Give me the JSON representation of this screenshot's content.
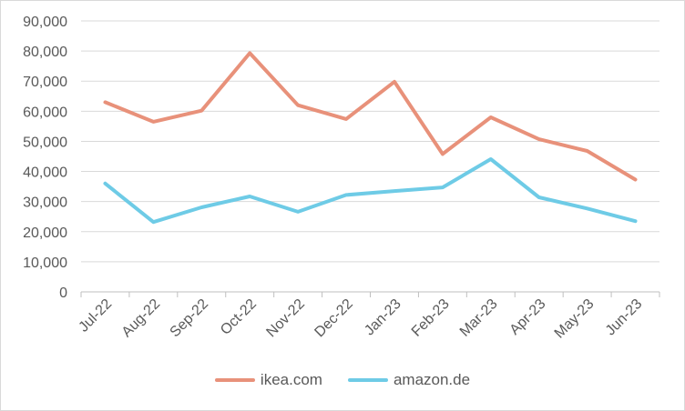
{
  "chart_data": {
    "type": "line",
    "title": "",
    "xlabel": "",
    "ylabel": "",
    "categories": [
      "Jul-22",
      "Aug-22",
      "Sep-22",
      "Oct-22",
      "Nov-22",
      "Dec-22",
      "Jan-23",
      "Feb-23",
      "Mar-23",
      "Apr-23",
      "May-23",
      "Jun-23"
    ],
    "ylim": [
      0,
      90000
    ],
    "yticks": [
      "0",
      "10,000",
      "20,000",
      "30,000",
      "40,000",
      "50,000",
      "60,000",
      "70,000",
      "80,000",
      "90,000"
    ],
    "grid": true,
    "legend_position": "bottom",
    "series": [
      {
        "name": "ikea.com",
        "color": "#e8917a",
        "values": [
          63000,
          56500,
          60200,
          79300,
          62000,
          57400,
          69800,
          45800,
          58000,
          50700,
          46800,
          37300
        ]
      },
      {
        "name": "amazon.de",
        "color": "#6ecbe6",
        "values": [
          36000,
          23200,
          28100,
          31700,
          26600,
          32200,
          33500,
          34700,
          44100,
          31400,
          27700,
          23500
        ]
      }
    ]
  }
}
